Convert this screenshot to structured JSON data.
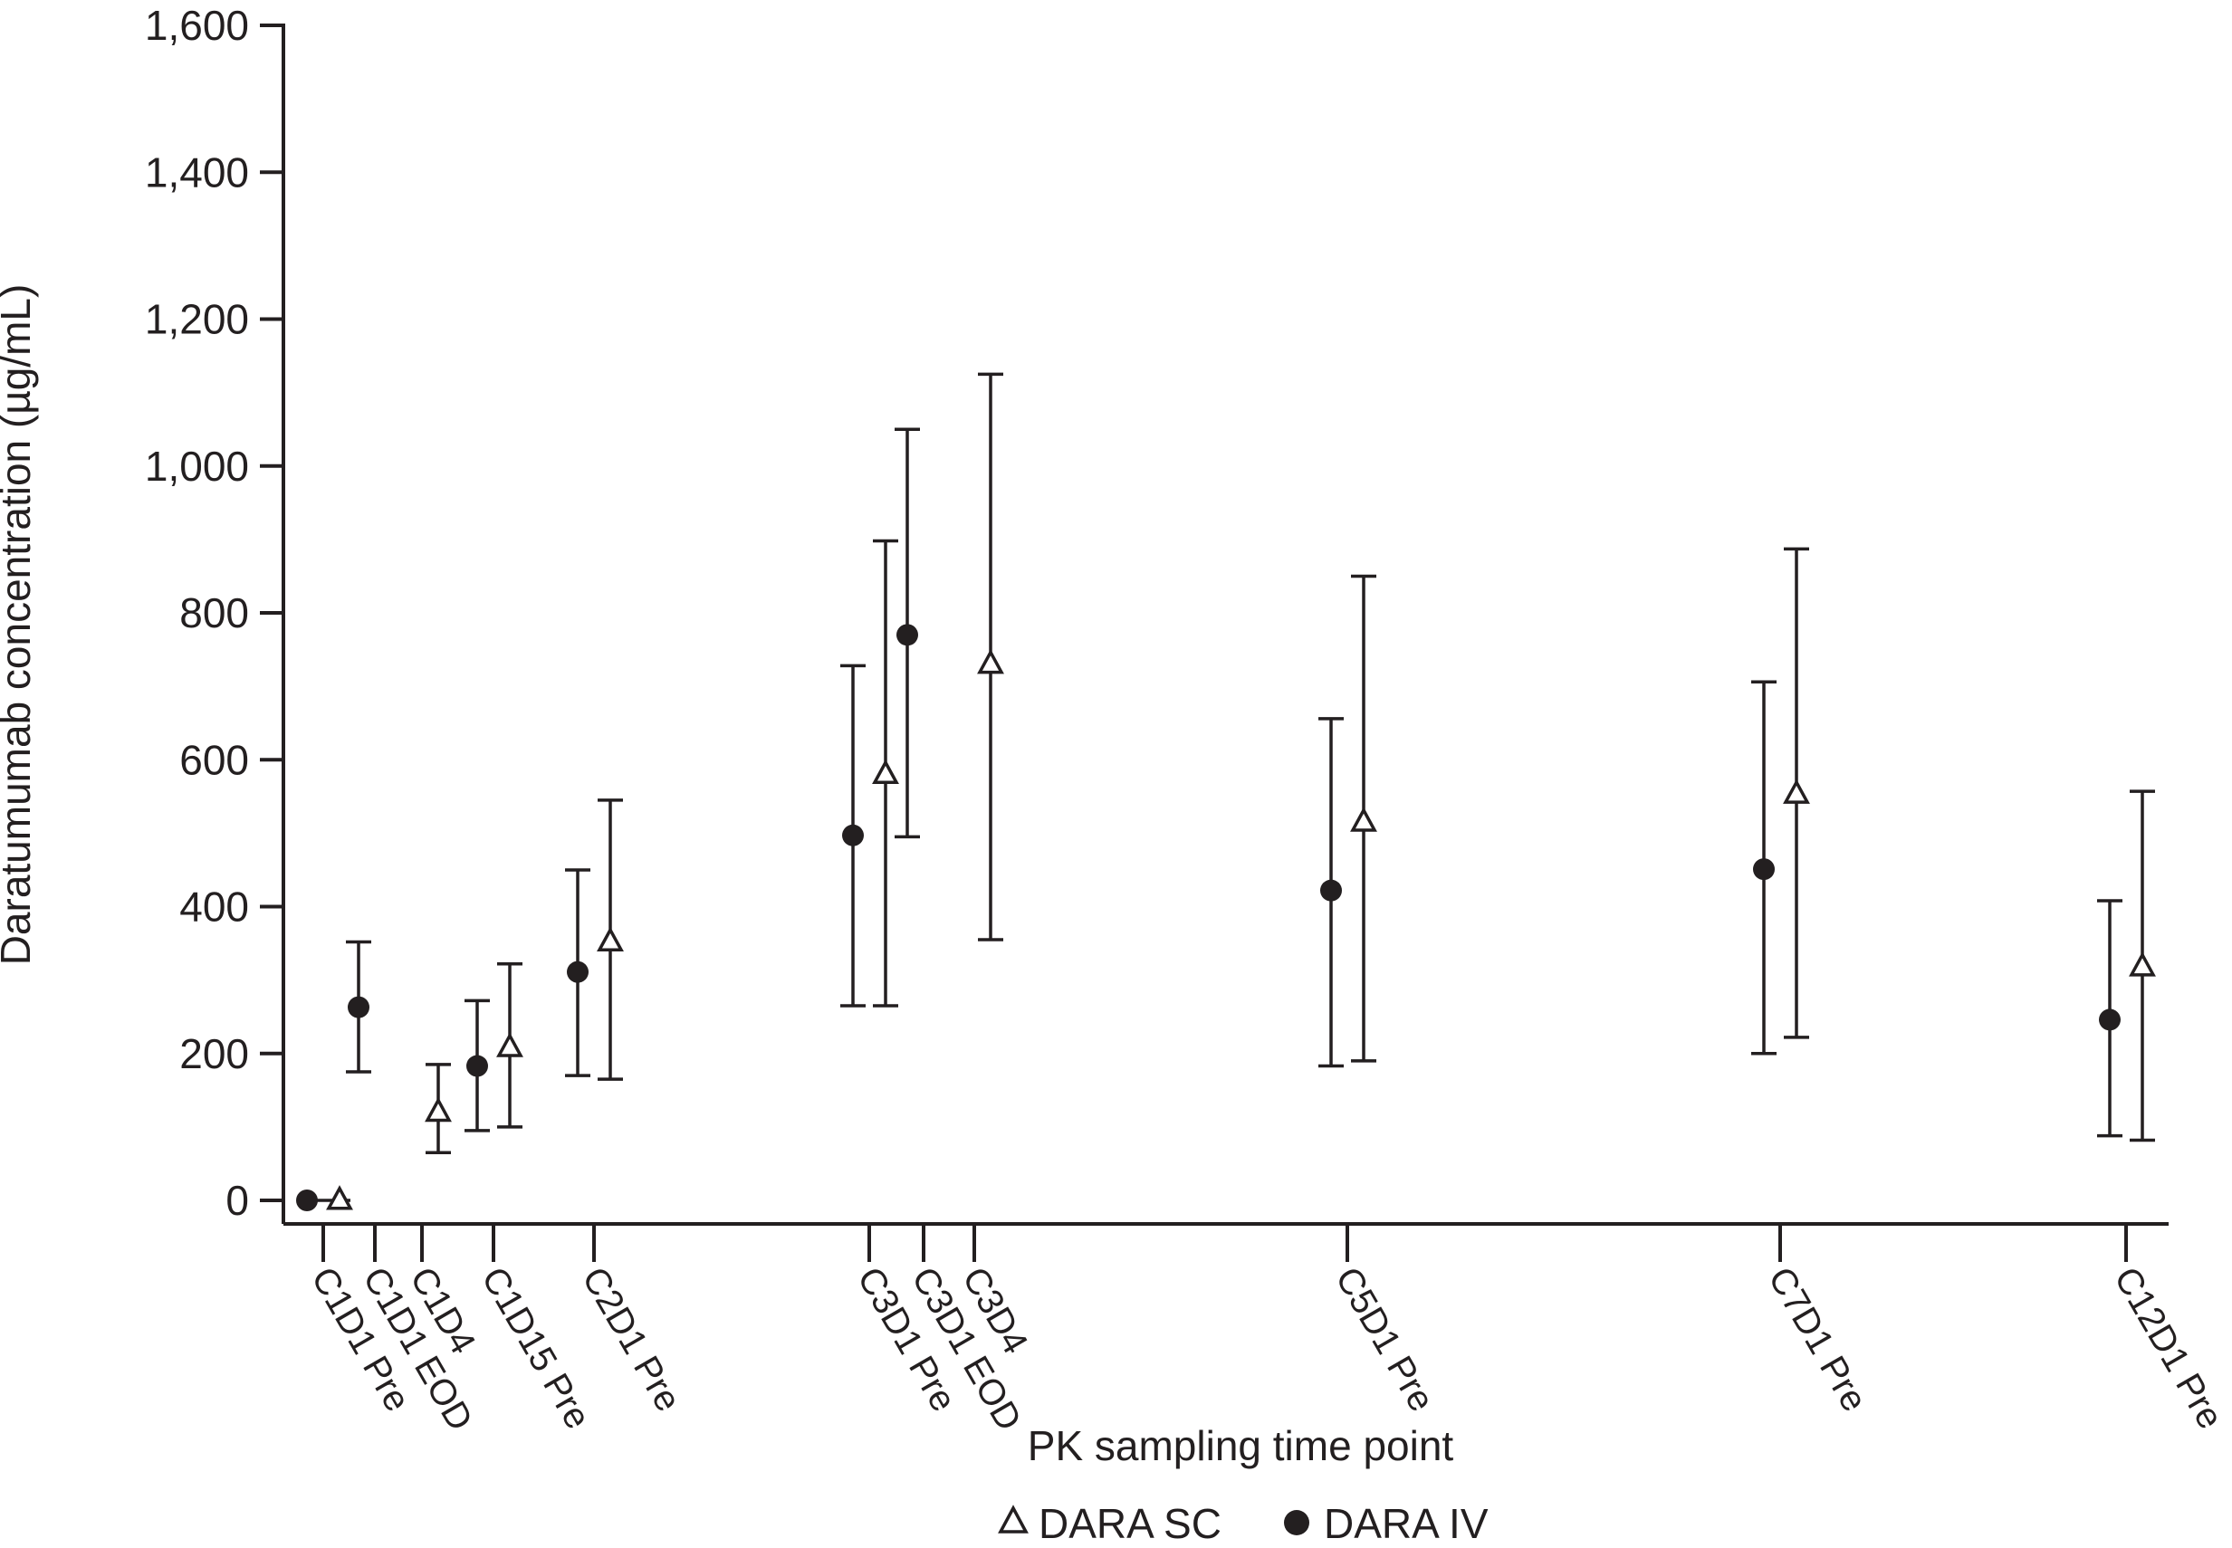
{
  "chart_data": {
    "type": "scatter",
    "title": "",
    "xlabel": "PK sampling time point",
    "ylabel": "Daratumumab concentration (µg/mL)",
    "ylim": [
      0,
      1600
    ],
    "yticks": [
      {
        "value": 0,
        "label": "0"
      },
      {
        "value": 200,
        "label": "200"
      },
      {
        "value": 400,
        "label": "400"
      },
      {
        "value": 600,
        "label": "600"
      },
      {
        "value": 800,
        "label": "800"
      },
      {
        "value": 1000,
        "label": "1,000"
      },
      {
        "value": 1200,
        "label": "1,200"
      },
      {
        "value": 1400,
        "label": "1,400"
      },
      {
        "value": 1600,
        "label": "1,600"
      }
    ],
    "categories": [
      "C1D1 Pre",
      "C1D1 EOD",
      "C1D4",
      "C1D15 Pre",
      "C2D1 Pre",
      "C3D1 Pre",
      "C3D1 EOD",
      "C3D4",
      "C5D1 Pre",
      "C7D1 Pre",
      "C12D1 Pre"
    ],
    "series": [
      {
        "name": "DARA SC",
        "marker": "open-triangle",
        "points": [
          {
            "category": "C1D1 Pre",
            "y": 0,
            "low": 0,
            "high": 0
          },
          {
            "category": "C1D4",
            "y": 120,
            "low": 65,
            "high": 185
          },
          {
            "category": "C1D15 Pre",
            "y": 208,
            "low": 100,
            "high": 322
          },
          {
            "category": "C2D1 Pre",
            "y": 352,
            "low": 165,
            "high": 545
          },
          {
            "category": "C3D1 Pre",
            "y": 580,
            "low": 265,
            "high": 898
          },
          {
            "category": "C3D4",
            "y": 730,
            "low": 355,
            "high": 1125
          },
          {
            "category": "C5D1 Pre",
            "y": 515,
            "low": 190,
            "high": 850
          },
          {
            "category": "C7D1 Pre",
            "y": 553,
            "low": 222,
            "high": 887
          },
          {
            "category": "C12D1 Pre",
            "y": 318,
            "low": 82,
            "high": 557
          }
        ]
      },
      {
        "name": "DARA IV",
        "marker": "filled-circle",
        "points": [
          {
            "category": "C1D1 Pre",
            "y": 0,
            "low": 0,
            "high": 0
          },
          {
            "category": "C1D1 EOD",
            "y": 263,
            "low": 175,
            "high": 352
          },
          {
            "category": "C1D15 Pre",
            "y": 183,
            "low": 95,
            "high": 272
          },
          {
            "category": "C2D1 Pre",
            "y": 311,
            "low": 170,
            "high": 450
          },
          {
            "category": "C3D1 Pre",
            "y": 497,
            "low": 265,
            "high": 728
          },
          {
            "category": "C3D1 EOD",
            "y": 770,
            "low": 495,
            "high": 1050
          },
          {
            "category": "C5D1 Pre",
            "y": 422,
            "low": 183,
            "high": 656
          },
          {
            "category": "C7D1 Pre",
            "y": 451,
            "low": 200,
            "high": 706
          },
          {
            "category": "C12D1 Pre",
            "y": 246,
            "low": 88,
            "high": 408
          }
        ]
      }
    ],
    "legend": {
      "placement": "bottom-center",
      "items": [
        "DARA SC",
        "DARA IV"
      ]
    },
    "grid": false
  }
}
